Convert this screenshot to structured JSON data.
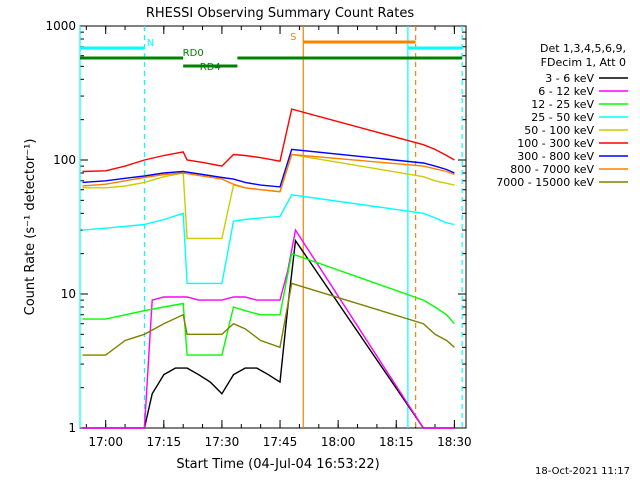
{
  "chart_data": {
    "type": "line",
    "title": "RHESSI Observing Summary Count Rates",
    "xlabel": "Start Time (04-Jul-04 16:53:22)",
    "ylabel": "Count Rate (s⁻¹ detector⁻¹)",
    "y_scale": "log",
    "ylim": [
      1,
      1000
    ],
    "xlim": [
      "16:53:22",
      "18:33:00"
    ],
    "x_ticks": [
      "17:00",
      "17:15",
      "17:30",
      "17:45",
      "18:00",
      "18:15",
      "18:30"
    ],
    "y_ticks": [
      "1",
      "10",
      "100",
      "1000"
    ],
    "grid": false,
    "legend": {
      "placement": "right",
      "header": [
        "Det 1,3,4,5,6,9,",
        "FDecim 1, Att 0"
      ]
    },
    "series": [
      {
        "name": "3 - 6 keV",
        "color": "#000000",
        "x": [
          "16:54",
          "17:05",
          "17:10",
          "17:12",
          "17:15",
          "17:18",
          "17:21",
          "17:24",
          "17:27",
          "17:30",
          "17:33",
          "17:36",
          "17:39",
          "17:42",
          "17:45",
          "17:47",
          "17:49",
          "18:22",
          "18:25",
          "18:28",
          "18:30"
        ],
        "y": [
          1,
          1,
          1,
          1.8,
          2.5,
          2.8,
          2.8,
          2.5,
          2.2,
          1.8,
          2.5,
          2.8,
          2.8,
          2.5,
          2.2,
          8,
          25,
          1,
          1,
          1,
          1
        ]
      },
      {
        "name": "6 - 12 keV",
        "color": "#ff00ff",
        "x": [
          "16:54",
          "17:05",
          "17:10",
          "17:12",
          "17:15",
          "17:18",
          "17:21",
          "17:24",
          "17:27",
          "17:30",
          "17:33",
          "17:36",
          "17:39",
          "17:42",
          "17:45",
          "17:47",
          "17:49",
          "18:22",
          "18:25",
          "18:28",
          "18:30"
        ],
        "y": [
          1,
          1,
          1,
          9,
          9.5,
          9.5,
          9.5,
          9,
          9,
          9,
          9.5,
          9.5,
          9,
          9,
          9,
          15,
          30,
          1,
          1,
          1,
          1
        ]
      },
      {
        "name": "12 - 25 keV",
        "color": "#00ff00",
        "x": [
          "16:54",
          "17:00",
          "17:05",
          "17:10",
          "17:15",
          "17:20",
          "17:21",
          "17:25",
          "17:30",
          "17:33",
          "17:36",
          "17:40",
          "17:45",
          "17:48",
          "18:22",
          "18:25",
          "18:28",
          "18:30"
        ],
        "y": [
          6.5,
          6.5,
          7,
          7.5,
          8,
          8.5,
          3.5,
          3.5,
          3.5,
          8,
          7.5,
          7,
          7,
          20,
          9,
          8,
          7,
          6
        ]
      },
      {
        "name": "25 - 50 keV",
        "color": "#00ffff",
        "x": [
          "16:54",
          "17:00",
          "17:05",
          "17:10",
          "17:15",
          "17:20",
          "17:21",
          "17:25",
          "17:30",
          "17:33",
          "17:36",
          "17:40",
          "17:45",
          "17:48",
          "18:22",
          "18:25",
          "18:28",
          "18:30"
        ],
        "y": [
          30,
          31,
          32,
          33,
          36,
          40,
          12,
          12,
          12,
          35,
          36,
          37,
          38,
          55,
          40,
          37,
          34,
          33
        ]
      },
      {
        "name": "50 - 100 keV",
        "color": "#cccc00",
        "x": [
          "16:54",
          "17:00",
          "17:05",
          "17:10",
          "17:15",
          "17:20",
          "17:21",
          "17:25",
          "17:30",
          "17:33",
          "17:36",
          "17:40",
          "17:45",
          "17:48",
          "18:22",
          "18:25",
          "18:28",
          "18:30"
        ],
        "y": [
          62,
          62,
          64,
          68,
          75,
          80,
          26,
          26,
          26,
          65,
          62,
          60,
          58,
          110,
          75,
          70,
          67,
          65
        ]
      },
      {
        "name": "100 - 300 keV",
        "color": "#ff0000",
        "x": [
          "16:54",
          "17:00",
          "17:05",
          "17:10",
          "17:15",
          "17:20",
          "17:21",
          "17:25",
          "17:30",
          "17:33",
          "17:36",
          "17:40",
          "17:45",
          "17:48",
          "18:22",
          "18:25",
          "18:28",
          "18:30"
        ],
        "y": [
          82,
          83,
          90,
          100,
          108,
          115,
          100,
          96,
          90,
          110,
          108,
          104,
          98,
          240,
          130,
          120,
          108,
          100
        ]
      },
      {
        "name": "300 - 800 keV",
        "color": "#0000ff",
        "x": [
          "16:54",
          "17:00",
          "17:05",
          "17:10",
          "17:15",
          "17:20",
          "17:25",
          "17:30",
          "17:33",
          "17:36",
          "17:40",
          "17:45",
          "17:48",
          "18:22",
          "18:25",
          "18:28",
          "18:30"
        ],
        "y": [
          68,
          70,
          73,
          76,
          80,
          82,
          78,
          74,
          72,
          68,
          65,
          63,
          120,
          95,
          90,
          85,
          80
        ]
      },
      {
        "name": "800 - 7000 keV",
        "color": "#ff8000",
        "x": [
          "16:54",
          "17:00",
          "17:05",
          "17:10",
          "17:15",
          "17:20",
          "17:25",
          "17:30",
          "17:33",
          "17:36",
          "17:40",
          "17:45",
          "17:48",
          "18:22",
          "18:25",
          "18:28",
          "18:30"
        ],
        "y": [
          64,
          66,
          70,
          74,
          78,
          80,
          76,
          72,
          66,
          62,
          60,
          58,
          110,
          90,
          86,
          82,
          78
        ]
      },
      {
        "name": "7000 - 15000 keV",
        "color": "#808000",
        "x": [
          "16:54",
          "17:00",
          "17:05",
          "17:10",
          "17:15",
          "17:20",
          "17:21",
          "17:25",
          "17:30",
          "17:33",
          "17:36",
          "17:40",
          "17:45",
          "17:48",
          "18:22",
          "18:25",
          "18:28",
          "18:30"
        ],
        "y": [
          3.5,
          3.5,
          4.5,
          5,
          6,
          7,
          5,
          5,
          5,
          6,
          5.5,
          4.5,
          4,
          12,
          6,
          5,
          4.5,
          4
        ]
      }
    ],
    "flags": [
      {
        "label": "N",
        "color": "#00ffff",
        "vlines": [
          "17:10",
          "18:32"
        ],
        "bars": [
          [
            "16:53:22",
            "17:10"
          ],
          [
            "18:18",
            "18:32"
          ]
        ]
      },
      {
        "label": "RD0",
        "color": "#008000",
        "bars": [
          [
            "16:53:22",
            "17:20"
          ],
          [
            "17:34",
            "18:32"
          ]
        ]
      },
      {
        "label": "RD4",
        "color": "#008000",
        "bars": [
          [
            "17:20",
            "17:34"
          ]
        ]
      },
      {
        "label": "S",
        "color": "#ff8000",
        "vlines": [
          "17:51",
          "18:20"
        ],
        "bars": [
          [
            "17:51",
            "18:20"
          ]
        ]
      }
    ],
    "extra_vlines": [
      {
        "color": "#00ffff",
        "x": "16:53:22",
        "style": "solid"
      },
      {
        "color": "#00ffff",
        "x": "18:18",
        "style": "solid"
      }
    ]
  },
  "footer": {
    "timestamp": "18-Oct-2021 11:17"
  }
}
